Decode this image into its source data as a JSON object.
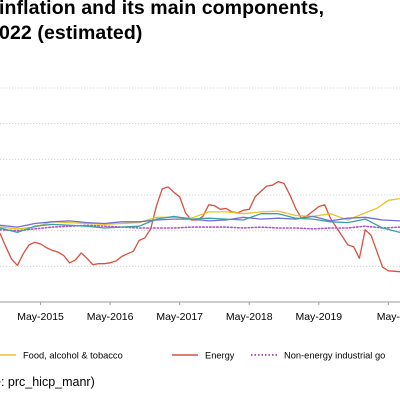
{
  "title": {
    "line1": "inflation and its main components,",
    "line2": "022 (estimated)"
  },
  "source": "e: prc_hicp_manr)",
  "chart_data": {
    "type": "line",
    "x_ticks": [
      "May-2015",
      "May-2016",
      "May-2017",
      "May-2018",
      "May-2019",
      "May-"
    ],
    "x_tick_values": [
      2015.333,
      2016.333,
      2017.333,
      2018.333,
      2019.333,
      2020.333
    ],
    "x_range": [
      2014.75,
      2020.5
    ],
    "y_range": [
      -8,
      16
    ],
    "gridlines": [
      -4,
      0,
      4,
      8,
      12,
      16
    ],
    "grid": true,
    "legend_position": "bottom",
    "series": [
      {
        "name": "Energy",
        "color": "#d9503f",
        "style": "solid",
        "points": [
          [
            2014.75,
            -0.3
          ],
          [
            2014.833,
            -1.8
          ],
          [
            2014.917,
            -3.2
          ],
          [
            2015.0,
            -3.9
          ],
          [
            2015.083,
            -2.6
          ],
          [
            2015.167,
            -1.6
          ],
          [
            2015.25,
            -1.3
          ],
          [
            2015.333,
            -1.5
          ],
          [
            2015.417,
            -1.9
          ],
          [
            2015.5,
            -2.2
          ],
          [
            2015.583,
            -2.4
          ],
          [
            2015.667,
            -2.8
          ],
          [
            2015.75,
            -3.6
          ],
          [
            2015.833,
            -3.3
          ],
          [
            2015.917,
            -2.5
          ],
          [
            2016.0,
            -3.1
          ],
          [
            2016.083,
            -3.8
          ],
          [
            2016.167,
            -3.7
          ],
          [
            2016.25,
            -3.7
          ],
          [
            2016.333,
            -3.6
          ],
          [
            2016.417,
            -3.4
          ],
          [
            2016.5,
            -2.9
          ],
          [
            2016.583,
            -2.6
          ],
          [
            2016.667,
            -2.3
          ],
          [
            2016.75,
            -1.1
          ],
          [
            2016.833,
            -0.8
          ],
          [
            2016.917,
            0.2
          ],
          [
            2017.0,
            2.8
          ],
          [
            2017.083,
            4.7
          ],
          [
            2017.167,
            4.9
          ],
          [
            2017.25,
            4.3
          ],
          [
            2017.333,
            3.8
          ],
          [
            2017.417,
            2.0
          ],
          [
            2017.5,
            1.2
          ],
          [
            2017.583,
            1.2
          ],
          [
            2017.667,
            1.6
          ],
          [
            2017.75,
            2.9
          ],
          [
            2017.833,
            2.8
          ],
          [
            2017.917,
            2.4
          ],
          [
            2018.0,
            2.5
          ],
          [
            2018.083,
            2.1
          ],
          [
            2018.167,
            2.0
          ],
          [
            2018.25,
            2.3
          ],
          [
            2018.333,
            2.4
          ],
          [
            2018.417,
            3.8
          ],
          [
            2018.5,
            4.4
          ],
          [
            2018.583,
            5.0
          ],
          [
            2018.667,
            5.1
          ],
          [
            2018.75,
            5.5
          ],
          [
            2018.833,
            5.3
          ],
          [
            2018.917,
            4.0
          ],
          [
            2019.0,
            2.5
          ],
          [
            2019.083,
            1.4
          ],
          [
            2019.167,
            1.7
          ],
          [
            2019.25,
            2.2
          ],
          [
            2019.333,
            2.7
          ],
          [
            2019.417,
            2.9
          ],
          [
            2019.5,
            1.4
          ],
          [
            2019.583,
            0.4
          ],
          [
            2019.667,
            -0.6
          ],
          [
            2019.75,
            -1.6
          ],
          [
            2019.833,
            -1.8
          ],
          [
            2019.917,
            -3.1
          ],
          [
            2020.0,
            0.1
          ],
          [
            2020.083,
            -0.5
          ],
          [
            2020.167,
            -2.3
          ],
          [
            2020.25,
            -4.1
          ],
          [
            2020.333,
            -4.5
          ],
          [
            2020.5,
            -4.6
          ]
        ]
      },
      {
        "name": "Food, alcohol & tobacco",
        "color": "#e7c32a",
        "style": "solid",
        "points": [
          [
            2014.75,
            0.4
          ],
          [
            2015.0,
            0.2
          ],
          [
            2015.25,
            0.4
          ],
          [
            2015.5,
            1.0
          ],
          [
            2015.75,
            0.9
          ],
          [
            2016.0,
            0.8
          ],
          [
            2016.25,
            0.7
          ],
          [
            2016.5,
            0.8
          ],
          [
            2016.75,
            0.9
          ],
          [
            2017.0,
            1.5
          ],
          [
            2017.25,
            1.5
          ],
          [
            2017.5,
            1.4
          ],
          [
            2017.75,
            2.1
          ],
          [
            2018.0,
            2.1
          ],
          [
            2018.25,
            1.9
          ],
          [
            2018.5,
            2.1
          ],
          [
            2018.75,
            2.2
          ],
          [
            2019.0,
            1.7
          ],
          [
            2019.25,
            1.6
          ],
          [
            2019.5,
            1.9
          ],
          [
            2019.75,
            1.2
          ],
          [
            2020.0,
            2.0
          ],
          [
            2020.167,
            2.5
          ],
          [
            2020.333,
            3.4
          ],
          [
            2020.5,
            3.6
          ]
        ]
      },
      {
        "name": "Non-energy industrial goods",
        "color": "#b055c7",
        "style": "dotted",
        "points": [
          [
            2014.75,
            0.1
          ],
          [
            2015.0,
            0.0
          ],
          [
            2015.25,
            0.2
          ],
          [
            2015.5,
            0.4
          ],
          [
            2015.75,
            0.5
          ],
          [
            2016.0,
            0.6
          ],
          [
            2016.25,
            0.5
          ],
          [
            2016.5,
            0.4
          ],
          [
            2016.75,
            0.3
          ],
          [
            2017.0,
            0.3
          ],
          [
            2017.25,
            0.3
          ],
          [
            2017.5,
            0.4
          ],
          [
            2017.75,
            0.4
          ],
          [
            2018.0,
            0.4
          ],
          [
            2018.25,
            0.3
          ],
          [
            2018.5,
            0.4
          ],
          [
            2018.75,
            0.3
          ],
          [
            2019.0,
            0.3
          ],
          [
            2019.25,
            0.2
          ],
          [
            2019.5,
            0.3
          ],
          [
            2019.75,
            0.3
          ],
          [
            2020.0,
            0.5
          ],
          [
            2020.25,
            0.3
          ],
          [
            2020.5,
            0.4
          ]
        ]
      },
      {
        "color": "#7070d0",
        "style": "solid",
        "points": [
          [
            2014.75,
            0.6
          ],
          [
            2015.0,
            0.4
          ],
          [
            2015.25,
            0.8
          ],
          [
            2015.5,
            1.0
          ],
          [
            2015.75,
            1.1
          ],
          [
            2016.0,
            0.9
          ],
          [
            2016.25,
            0.8
          ],
          [
            2016.5,
            1.0
          ],
          [
            2016.75,
            1.0
          ],
          [
            2017.0,
            1.2
          ],
          [
            2017.25,
            1.3
          ],
          [
            2017.5,
            1.3
          ],
          [
            2017.75,
            1.1
          ],
          [
            2018.0,
            1.2
          ],
          [
            2018.25,
            1.5
          ],
          [
            2018.5,
            1.3
          ],
          [
            2018.75,
            1.4
          ],
          [
            2019.0,
            1.3
          ],
          [
            2019.25,
            1.6
          ],
          [
            2019.5,
            1.1
          ],
          [
            2019.75,
            1.4
          ],
          [
            2020.0,
            1.5
          ],
          [
            2020.25,
            1.2
          ],
          [
            2020.5,
            1.1
          ]
        ]
      },
      {
        "color": "#3aa0a0",
        "style": "solid",
        "points": [
          [
            2014.75,
            0.3
          ],
          [
            2015.0,
            -0.2
          ],
          [
            2015.25,
            0.5
          ],
          [
            2015.5,
            0.7
          ],
          [
            2015.75,
            0.6
          ],
          [
            2016.0,
            0.5
          ],
          [
            2016.25,
            0.3
          ],
          [
            2016.5,
            0.4
          ],
          [
            2016.75,
            0.5
          ],
          [
            2017.0,
            1.3
          ],
          [
            2017.25,
            1.6
          ],
          [
            2017.5,
            1.3
          ],
          [
            2017.75,
            1.4
          ],
          [
            2018.0,
            1.3
          ],
          [
            2018.25,
            1.2
          ],
          [
            2018.5,
            1.9
          ],
          [
            2018.75,
            1.9
          ],
          [
            2019.0,
            1.4
          ],
          [
            2019.25,
            1.3
          ],
          [
            2019.5,
            1.0
          ],
          [
            2019.75,
            0.9
          ],
          [
            2020.0,
            1.3
          ],
          [
            2020.25,
            0.3
          ],
          [
            2020.5,
            -0.2
          ]
        ]
      }
    ],
    "legend": [
      {
        "label": "Food, alcohol & tobacco",
        "color": "#e7c32a",
        "style": "solid"
      },
      {
        "label": "Energy",
        "color": "#d9503f",
        "style": "solid"
      },
      {
        "label": "Non-energy industrial go",
        "color": "#b055c7",
        "style": "dotted"
      }
    ]
  }
}
